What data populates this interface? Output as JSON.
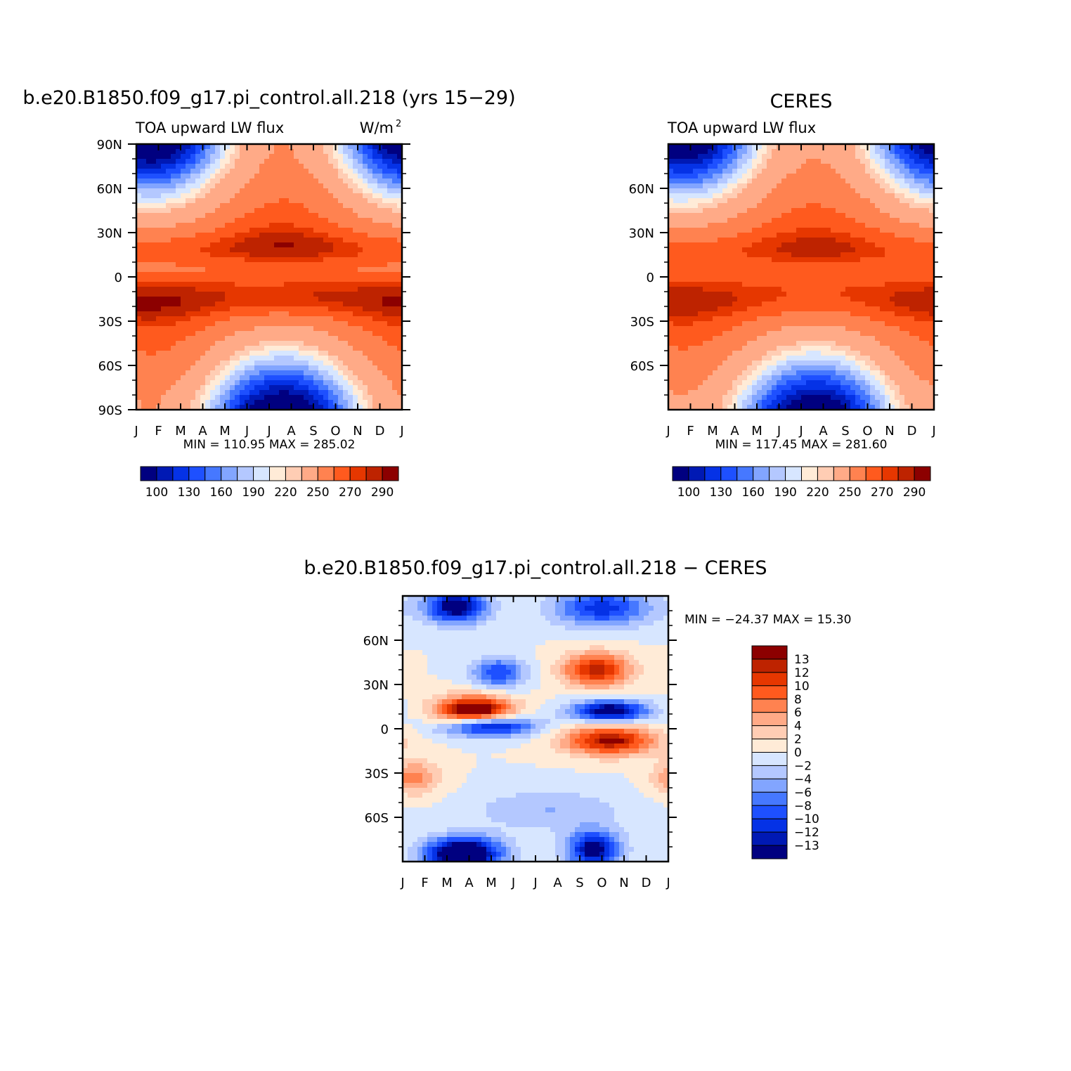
{
  "chart_data": [
    {
      "type": "heatmap",
      "title": "b.e20.B1850.f09_g17.pi_control.all.218 (yrs 15−29)",
      "subtitle_left": "TOA upward LW flux",
      "subtitle_right": "W/m",
      "units_superscript": "2",
      "x_ticks": [
        "J",
        "F",
        "M",
        "A",
        "M",
        "J",
        "J",
        "A",
        "S",
        "O",
        "N",
        "D",
        "J"
      ],
      "y_ticks": [
        "90N",
        "60N",
        "30N",
        "0",
        "30S",
        "60S",
        "90S"
      ],
      "ylim": [
        -90,
        90
      ],
      "stats": "MIN =  110.95 MAX =  285.02",
      "colorbar_labels": [
        "100",
        "130",
        "160",
        "190",
        "220",
        "250",
        "270",
        "290"
      ],
      "field": "model"
    },
    {
      "type": "heatmap",
      "title": "CERES",
      "subtitle_left": "TOA upward LW flux",
      "x_ticks": [
        "J",
        "F",
        "M",
        "A",
        "M",
        "J",
        "J",
        "A",
        "S",
        "O",
        "N",
        "D",
        "J"
      ],
      "y_ticks": [
        "60N",
        "30N",
        "0",
        "30S",
        "60S"
      ],
      "ylim": [
        -90,
        90
      ],
      "stats": "MIN =  117.45 MAX =  281.60",
      "colorbar_labels": [
        "100",
        "130",
        "160",
        "190",
        "220",
        "250",
        "270",
        "290"
      ],
      "field": "obs"
    },
    {
      "type": "heatmap",
      "title": "b.e20.B1850.f09_g17.pi_control.all.218 − CERES",
      "x_ticks": [
        "J",
        "F",
        "M",
        "A",
        "M",
        "J",
        "J",
        "A",
        "S",
        "O",
        "N",
        "D",
        "J"
      ],
      "y_ticks": [
        "60N",
        "30N",
        "0",
        "30S",
        "60S"
      ],
      "ylim": [
        -90,
        90
      ],
      "stats": "MIN = −24.37 MAX =   15.30",
      "colorbar_labels": [
        "13",
        "12",
        "10",
        "8",
        "6",
        "4",
        "2",
        "0",
        "−2",
        "−4",
        "−6",
        "−8",
        "−10",
        "−12",
        "−13"
      ],
      "field": "diff"
    }
  ],
  "colors": {
    "abs_scale": [
      "#000080",
      "#0019b4",
      "#0532e6",
      "#1e50ff",
      "#4678ff",
      "#82a5ff",
      "#b4c8ff",
      "#d7e6ff",
      "#ffebd7",
      "#ffcdb4",
      "#ffaa87",
      "#ff8250",
      "#ff5a1e",
      "#e63700",
      "#be2300",
      "#8c0000"
    ],
    "diff_scale": [
      "#8c0000",
      "#be2300",
      "#e63700",
      "#ff5a1e",
      "#ff8250",
      "#ffaa87",
      "#ffcdb4",
      "#ffebd7",
      "#d7e6ff",
      "#b4c8ff",
      "#82a5ff",
      "#4678ff",
      "#1e50ff",
      "#0532e6",
      "#0019b4",
      "#000080"
    ]
  }
}
